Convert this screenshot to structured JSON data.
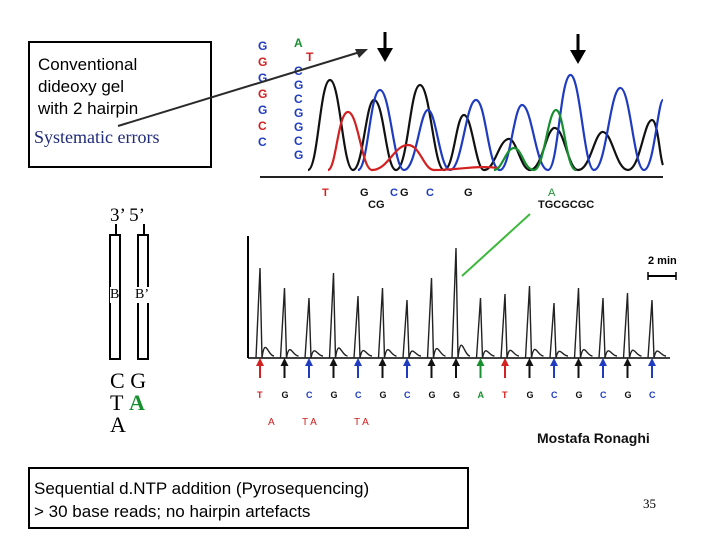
{
  "box_top": {
    "line1": "Conventional",
    "line2": "dideoxy gel",
    "line3": "with 2 hairpin",
    "line4": "Systematic errors"
  },
  "box_bottom": {
    "line1": "Sequential d.NTP addition (Pyrosequencing)",
    "line2": "> 30 base reads; no hairpin artefacts"
  },
  "gel_columns": {
    "left": [
      "G",
      "G",
      "G",
      "G",
      "G",
      "C",
      "C"
    ],
    "right": [
      "A",
      "T",
      "C",
      "G",
      "C",
      "G",
      "G",
      "C",
      "G"
    ]
  },
  "chromatogram": {
    "bases_top": [
      "T",
      "G",
      "C",
      "G",
      "C",
      "G",
      "A"
    ],
    "bases_bottom": [
      "CG",
      "TGCGCGC"
    ]
  },
  "hairpin": {
    "label_left": "3’",
    "label_right": "5’",
    "strand_left": "B",
    "strand_right": "B’",
    "pairs": [
      {
        "left": "C",
        "right": "G"
      },
      {
        "left": "T",
        "right": "A"
      },
      {
        "left": "A",
        "right": ""
      }
    ]
  },
  "pyrogram": {
    "scale": "2 min",
    "bases": [
      "T",
      "G",
      "C",
      "G",
      "C",
      "G",
      "C",
      "G",
      "G",
      "A",
      "T",
      "G",
      "C",
      "G",
      "C",
      "G",
      "C"
    ],
    "extra_bases": [
      "A",
      "T A",
      "T A"
    ]
  },
  "credit": "Mostafa Ronaghi",
  "page_number": "35",
  "colors": {
    "red": "#d32020",
    "blue": "#1f3cc0",
    "green": "#189030",
    "black": "#111111",
    "arrow_line": "#2a2a2a",
    "green_line": "#3cb83c"
  }
}
